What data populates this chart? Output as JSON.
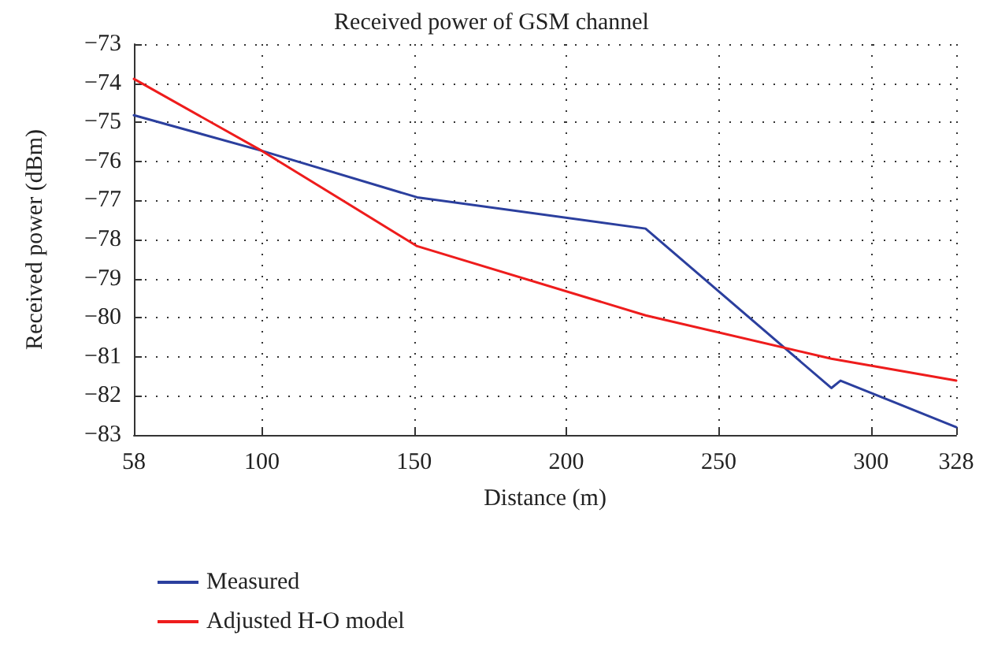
{
  "chart_data": {
    "type": "line",
    "title": "Received power of GSM channel",
    "xlabel": "Distance (m)",
    "ylabel": "Received power (dBm)",
    "xlim": [
      58,
      328
    ],
    "xticks": [
      58,
      100,
      150,
      200,
      250,
      300,
      328
    ],
    "ylim": [
      -83,
      -73
    ],
    "yticks": [
      -83,
      -82,
      -81,
      -80,
      -79,
      -78,
      -77,
      -76,
      -75,
      -74,
      -73
    ],
    "grid": true,
    "legend": "bottom left",
    "marker": "none",
    "line_style": "solid",
    "series": [
      {
        "name": "Measured",
        "color": "#2b3f9e",
        "x": [
          58,
          100,
          151,
          226,
          287,
          290,
          328
        ],
        "values": [
          -74.82,
          -75.73,
          -76.92,
          -77.72,
          -81.8,
          -81.61,
          -82.8
        ]
      },
      {
        "name": "Adjusted H-O model",
        "color": "#ee1c1c",
        "x": [
          58,
          100,
          151,
          226,
          287,
          328
        ],
        "values": [
          -73.89,
          -75.73,
          -78.17,
          -79.94,
          -81.05,
          -81.61
        ]
      }
    ]
  }
}
